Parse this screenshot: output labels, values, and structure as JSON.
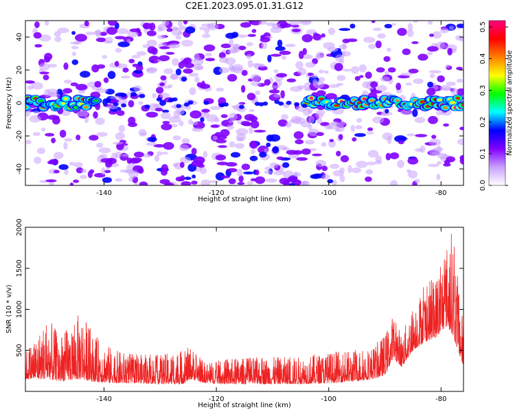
{
  "figure": {
    "title": "C2E1.2023.095.01.31.G12"
  },
  "chart_data": [
    {
      "type": "heatmap",
      "title": "",
      "xlabel": "Height of straight line (km)",
      "ylabel": "Frequency (Hz)",
      "xlim": [
        -154,
        -76
      ],
      "ylim": [
        -50,
        50
      ],
      "xticks": [
        -140,
        -120,
        -100,
        -80
      ],
      "yticks": [
        -40,
        -20,
        0,
        20,
        40
      ],
      "colorbar": {
        "label": "Normalized spectral amplitude",
        "range": [
          0.0,
          0.52
        ],
        "ticks": [
          0.0,
          0.1,
          0.2,
          0.3,
          0.4,
          0.5
        ],
        "colors": [
          "#ffffff",
          "#c8a0ff",
          "#8000ff",
          "#0000ff",
          "#00ffff",
          "#00ff00",
          "#ffff00",
          "#ff8000",
          "#ff0000",
          "#ff0080"
        ]
      },
      "ridge": {
        "description": "strong band centered near 0 Hz",
        "segments": [
          {
            "x": [
              -154,
              -141
            ],
            "amplitude": 0.45
          },
          {
            "x": [
              -104,
              -76
            ],
            "amplitude": 0.5
          }
        ]
      }
    },
    {
      "type": "line",
      "title": "",
      "xlabel": "Height of straight line (km)",
      "ylabel": "SNR (10 * v/v)",
      "xlim": [
        -154,
        -76
      ],
      "ylim": [
        0,
        2000
      ],
      "xticks": [
        -140,
        -120,
        -100,
        -80
      ],
      "yticks": [
        500,
        1000,
        1500,
        2000
      ],
      "color": "#ee2222",
      "envelope": {
        "x": [
          -154,
          -150,
          -148,
          -146,
          -144,
          -142,
          -138,
          -134,
          -130,
          -126,
          -124.5,
          -122,
          -118,
          -112,
          -106,
          -100,
          -96,
          -92,
          -90,
          -88.5,
          -87,
          -85,
          -83,
          -81,
          -79,
          -78,
          -77,
          -76
        ],
        "low": [
          150,
          150,
          120,
          140,
          150,
          120,
          100,
          100,
          90,
          90,
          150,
          100,
          90,
          90,
          90,
          100,
          120,
          150,
          200,
          400,
          300,
          500,
          600,
          650,
          800,
          700,
          500,
          300
        ],
        "high": [
          500,
          900,
          700,
          800,
          1000,
          700,
          500,
          450,
          450,
          500,
          550,
          350,
          400,
          420,
          420,
          480,
          500,
          550,
          700,
          950,
          700,
          1050,
          1300,
          1400,
          1800,
          2000,
          1400,
          800
        ]
      }
    }
  ]
}
